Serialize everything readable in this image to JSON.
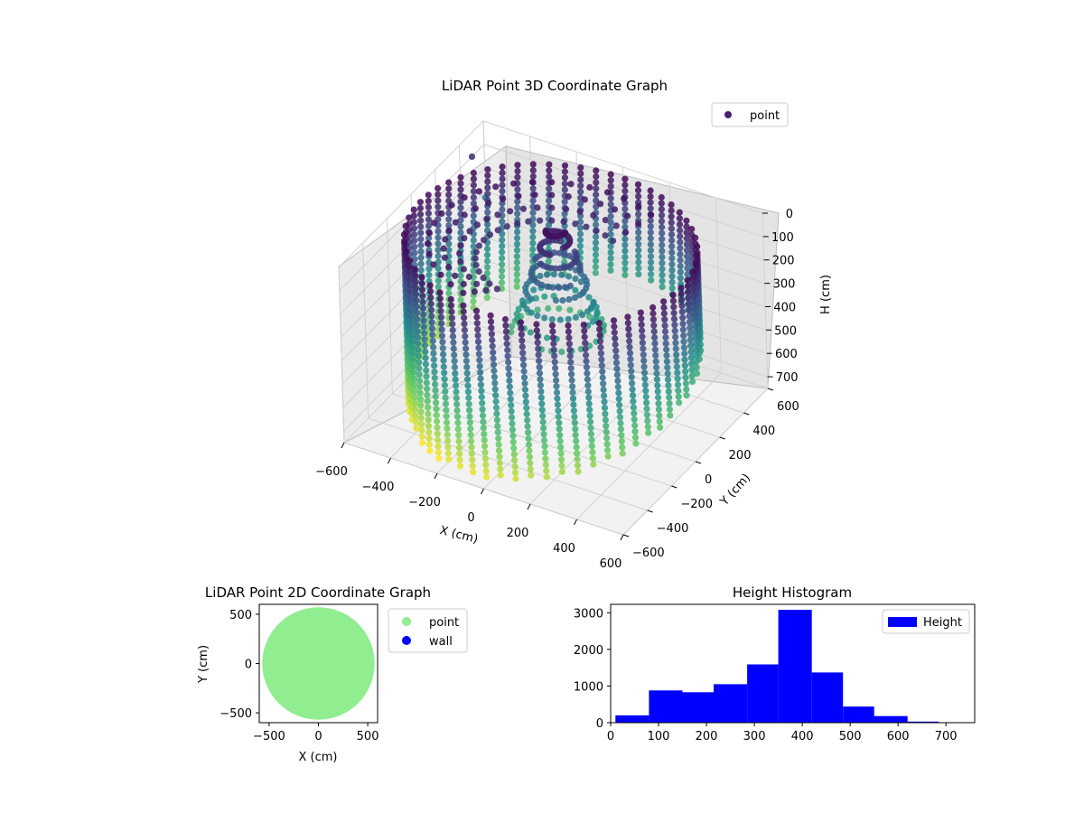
{
  "chart_data": [
    {
      "type": "scatter3d",
      "title": "LiDAR Point 3D Coordinate Graph",
      "xlabel": "X (cm)",
      "ylabel": "Y (cm)",
      "zlabel": "H (cm)",
      "xlim": [
        -600,
        600
      ],
      "ylim": [
        -600,
        600
      ],
      "zlim": [
        750,
        0
      ],
      "x_ticks": [
        "−600",
        "−400",
        "−200",
        "0",
        "200",
        "400",
        "600"
      ],
      "y_ticks": [
        "−600",
        "−400",
        "−200",
        "0",
        "200",
        "400",
        "600"
      ],
      "z_ticks": [
        "0",
        "100",
        "200",
        "300",
        "400",
        "500",
        "600",
        "700"
      ],
      "colormap": "viridis",
      "grid": true,
      "legend": [
        {
          "name": "point",
          "color": "#482173"
        }
      ],
      "legend_position": "top-right",
      "shape": "cylindrical wall of scan columns, radius ~570 cm, heights ~0-750 cm, plus a central cluster",
      "outliers": [
        {
          "x": -600,
          "y": 500,
          "h": 100
        },
        {
          "x": -580,
          "y": 560,
          "h": 300
        }
      ]
    },
    {
      "type": "scatter",
      "title": "LiDAR Point 2D Coordinate Graph",
      "xlabel": "X (cm)",
      "ylabel": "Y (cm)",
      "xlim": [
        -600,
        600
      ],
      "ylim": [
        -600,
        600
      ],
      "x_ticks": [
        "−500",
        "0",
        "500"
      ],
      "y_ticks": [
        "−500",
        "0",
        "500"
      ],
      "series": [
        {
          "name": "point",
          "color": "#90ee90",
          "shape": "filled disc",
          "center": [
            0,
            0
          ],
          "radius": 570
        },
        {
          "name": "wall",
          "color": "#0000ff",
          "points": []
        }
      ],
      "legend_position": "outside-right"
    },
    {
      "type": "bar",
      "title": "Height Histogram",
      "xlim": [
        0,
        760
      ],
      "ylim": [
        0,
        3230
      ],
      "x_ticks": [
        "0",
        "100",
        "200",
        "300",
        "400",
        "500",
        "600",
        "700"
      ],
      "y_ticks": [
        "0",
        "1000",
        "2000",
        "3000"
      ],
      "bins": [
        {
          "start": 10,
          "end": 80,
          "count": 200
        },
        {
          "start": 80,
          "end": 150,
          "count": 880
        },
        {
          "start": 150,
          "end": 215,
          "count": 830
        },
        {
          "start": 215,
          "end": 285,
          "count": 1050
        },
        {
          "start": 285,
          "end": 350,
          "count": 1590
        },
        {
          "start": 350,
          "end": 420,
          "count": 3080
        },
        {
          "start": 420,
          "end": 485,
          "count": 1370
        },
        {
          "start": 485,
          "end": 550,
          "count": 440
        },
        {
          "start": 550,
          "end": 620,
          "count": 180
        },
        {
          "start": 620,
          "end": 685,
          "count": 30
        },
        {
          "start": 685,
          "end": 755,
          "count": 10
        }
      ],
      "color": "#0000ff",
      "legend": [
        {
          "name": "Height",
          "color": "#0000ff"
        }
      ],
      "legend_position": "top-right"
    }
  ]
}
